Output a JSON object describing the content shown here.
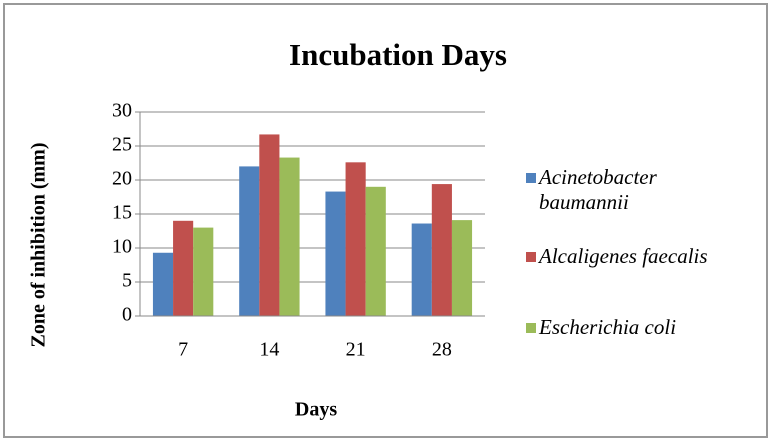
{
  "chart_data": {
    "type": "bar",
    "title": "Incubation Days",
    "xlabel": "Days",
    "ylabel": "Zone of inhibition (mm)",
    "categories": [
      "7",
      "14",
      "21",
      "28"
    ],
    "series": [
      {
        "name": "Acinetobacter baumannii",
        "color": "#4f81bd",
        "values": [
          9.3,
          22,
          18.3,
          13.6
        ]
      },
      {
        "name": "Alcaligenes faecalis",
        "color": "#c0504d",
        "values": [
          14,
          26.7,
          22.6,
          19.4
        ]
      },
      {
        "name": "Escherichia coli",
        "color": "#9bbb59",
        "values": [
          13,
          23.3,
          19,
          14.1
        ]
      }
    ],
    "ylim": [
      0,
      30
    ],
    "yticks": [
      0,
      5,
      10,
      15,
      20,
      25,
      30
    ],
    "grid": true,
    "legend": "right"
  }
}
